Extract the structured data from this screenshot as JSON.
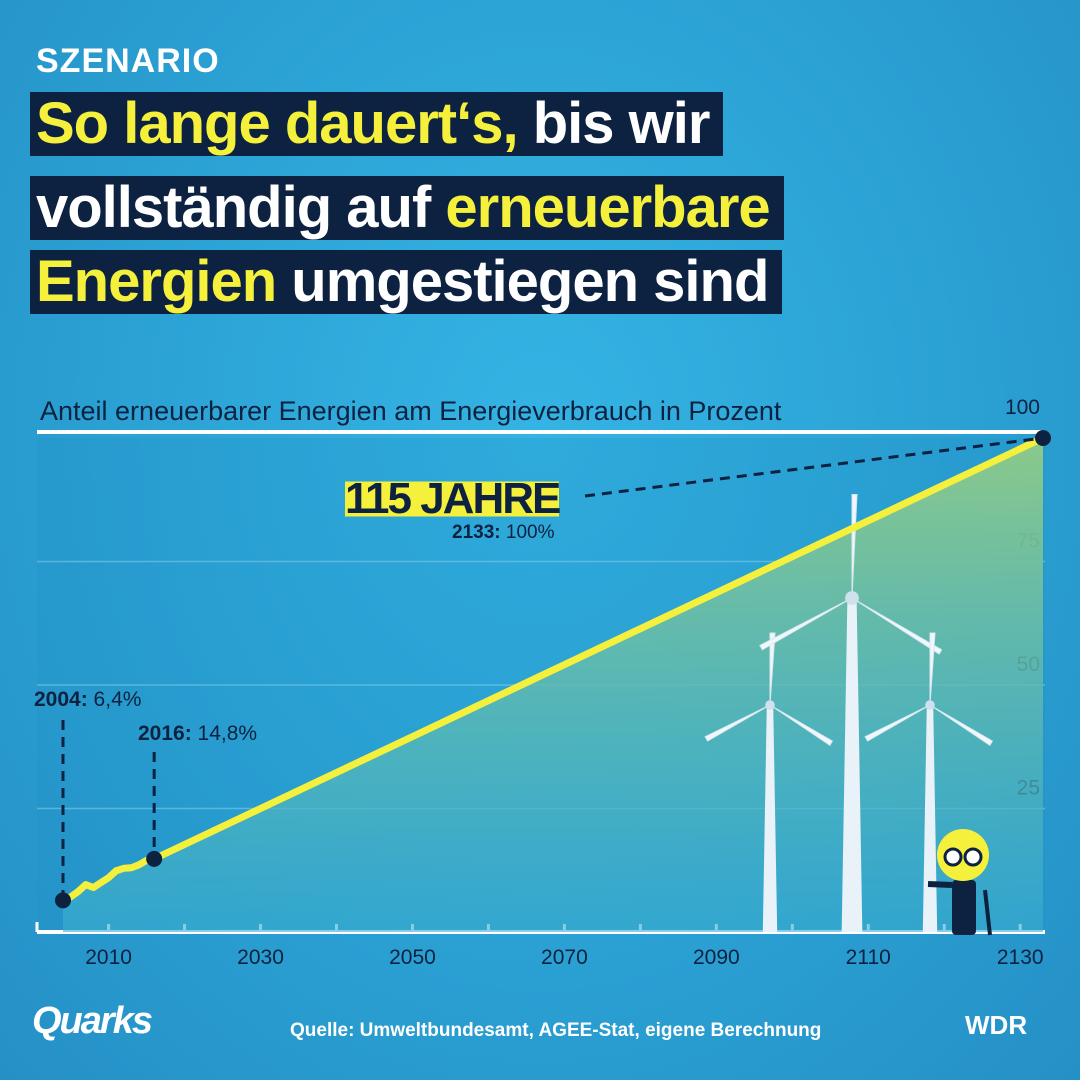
{
  "kicker": "SZENARIO",
  "headline": {
    "l1a": "So lange dauert‘s,",
    "l1b": " bis wir",
    "l2a": "vollständig auf ",
    "l2b": "erneuerbare",
    "l3a": "Energien",
    "l3b": " umgestiegen sind"
  },
  "annotations": {
    "a2004_year": "2004:",
    "a2004_val": " 6,4%",
    "a2016_year": "2016:",
    "a2016_val": " 14,8%",
    "years": "115 JAHRE",
    "a2133_year": "2133:",
    "a2133_val": " 100%"
  },
  "footer": {
    "source": "Quelle: Umweltbundesamt, AGEE-Stat, eigene Berechnung",
    "brand_left": "Quarks",
    "brand_right": "WDR"
  },
  "colors": {
    "line": "#f5f03c",
    "navy": "#0d2240",
    "fill_top": "#8cc98a"
  },
  "chart_data": {
    "type": "line",
    "title": "Anteil erneuerbarer Energien am Energieverbrauch in Prozent",
    "xlabel": "",
    "ylabel": "Prozent",
    "xlim": [
      2000,
      2134
    ],
    "ylim": [
      0,
      100
    ],
    "xticks": [
      2010,
      2030,
      2050,
      2070,
      2090,
      2110,
      2130
    ],
    "yticks": [
      25,
      50,
      75,
      100
    ],
    "grid": true,
    "series": [
      {
        "name": "Anteil erneuerbarer Energien",
        "x": [
          2004,
          2005,
          2006,
          2007,
          2008,
          2009,
          2010,
          2011,
          2012,
          2013,
          2014,
          2015,
          2016,
          2133
        ],
        "y": [
          6.4,
          7.1,
          8.2,
          9.6,
          9.0,
          10.0,
          11.0,
          12.4,
          12.9,
          13.0,
          13.6,
          14.5,
          14.8,
          100
        ]
      }
    ],
    "highlight_points": [
      {
        "x": 2004,
        "y": 6.4
      },
      {
        "x": 2016,
        "y": 14.8
      },
      {
        "x": 2133,
        "y": 100
      }
    ]
  }
}
